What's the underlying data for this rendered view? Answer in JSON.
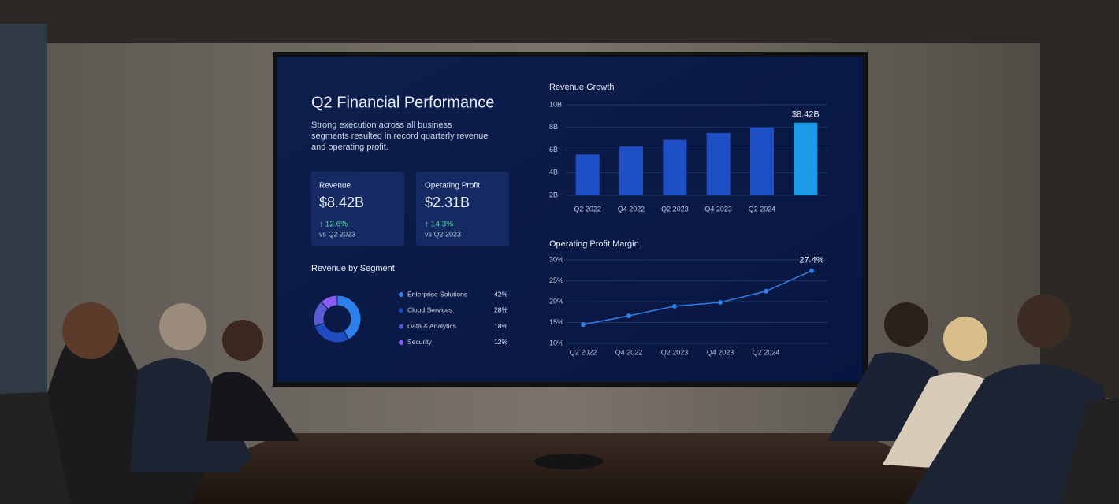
{
  "dashboard": {
    "title": "Q2 Financial Performance",
    "description": "Strong execution across all business segments resulted in record quarterly revenue and operating profit.",
    "kpis": [
      {
        "label": "Revenue",
        "value": "$8.42B",
        "change": "↑ 12.6%",
        "note": "vs Q2 2023"
      },
      {
        "label": "Operating Profit",
        "value": "$2.31B",
        "change": "↑ 14.3%",
        "note": "vs Q2 2023"
      }
    ]
  },
  "chart_data": [
    {
      "type": "bar",
      "title": "Revenue Growth",
      "categories": [
        "Q2 2022",
        "Q4 2022",
        "Q2 2023",
        "Q4 2023",
        "Q2 2024",
        null
      ],
      "values": [
        5.6,
        6.3,
        6.9,
        7.5,
        8.0,
        8.42
      ],
      "value_labels": [
        null,
        null,
        null,
        null,
        null,
        "$8.42B"
      ],
      "colors": [
        "#1f4fc4",
        "#1f4fc4",
        "#1f4fc4",
        "#1f4fc4",
        "#1f4fc4",
        "#1a9be6"
      ],
      "ylim": [
        2,
        10
      ],
      "yticks": [
        {
          "value": 2,
          "label": "2B"
        },
        {
          "value": 4,
          "label": "4B"
        },
        {
          "value": 6,
          "label": "6B"
        },
        {
          "value": 8,
          "label": "8B"
        },
        {
          "value": 10,
          "label": "10B"
        }
      ],
      "grid": true
    },
    {
      "type": "pie",
      "title": "Revenue by Segment",
      "categories": [
        "Enterprise Solutions",
        "Cloud Services",
        "Data & Analytics",
        "Security"
      ],
      "values": [
        42,
        28,
        18,
        12
      ],
      "value_labels": [
        "42%",
        "28%",
        "18%",
        "12%"
      ],
      "colors": [
        "#2f7fe8",
        "#1e4bbf",
        "#5b5bd6",
        "#8b5cf6"
      ]
    },
    {
      "type": "line",
      "title": "Operating Profit Margin",
      "categories": [
        "Q2 2022",
        "Q4 2022",
        "Q2 2023",
        "Q4 2023",
        "Q2 2024",
        null
      ],
      "values": [
        14.5,
        16.6,
        18.9,
        19.8,
        22.5,
        27.4
      ],
      "value_labels": [
        null,
        null,
        null,
        null,
        null,
        "27.4%"
      ],
      "color": "#2f7fe8",
      "ylim": [
        10,
        30
      ],
      "yticks": [
        {
          "value": 10,
          "label": "10%"
        },
        {
          "value": 15,
          "label": "15%"
        },
        {
          "value": 20,
          "label": "20%"
        },
        {
          "value": 25,
          "label": "25%"
        },
        {
          "value": 30,
          "label": "30%"
        }
      ],
      "grid": true
    }
  ]
}
